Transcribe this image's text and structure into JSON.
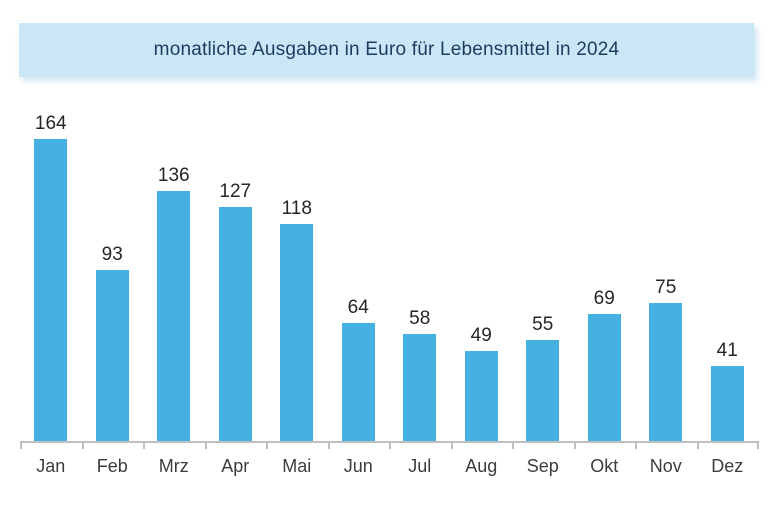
{
  "chart_data": {
    "type": "bar",
    "title": "monatliche Ausgaben in Euro für Lebensmittel in 2024",
    "categories": [
      "Jan",
      "Feb",
      "Mrz",
      "Apr",
      "Mai",
      "Jun",
      "Jul",
      "Aug",
      "Sep",
      "Okt",
      "Nov",
      "Dez"
    ],
    "values": [
      164,
      93,
      136,
      127,
      118,
      64,
      58,
      49,
      55,
      69,
      75,
      41
    ],
    "xlabel": "",
    "ylabel": "",
    "ylim": [
      0,
      180
    ],
    "grid": false,
    "legend": false,
    "value_labels_shown": true,
    "axis_ticks": "between-categories"
  },
  "colors": {
    "bar": "#45B1E1",
    "banner_bg": "#C9E7F6",
    "title_text": "#1F3A5F",
    "value_label": "#262626",
    "month_label": "#3D3D3D",
    "axis_line": "#BFBFBF"
  }
}
